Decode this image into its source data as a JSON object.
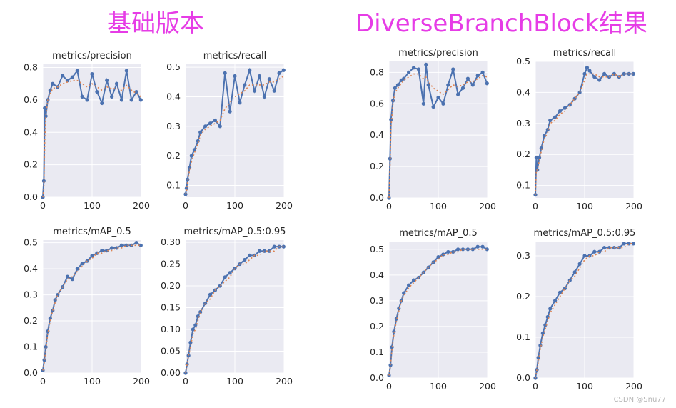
{
  "headings": {
    "left": "基础版本",
    "right": "DiverseBranchBlock结果"
  },
  "watermark": "CSDN @Snu77",
  "colors": {
    "heading": "#e63ce6",
    "panel_bg": "#eaeaf2",
    "grid": "#ffffff",
    "line": "#4c72b0",
    "smooth": "#dd8452"
  },
  "chart_data": [
    {
      "id": "base-precision",
      "group": "基础版本",
      "type": "line",
      "title": "metrics/precision",
      "xlim": [
        0,
        200
      ],
      "ylim": [
        0,
        0.82
      ],
      "xticks": [
        0,
        100,
        200
      ],
      "yticks": [
        0.0,
        0.2,
        0.4,
        0.6,
        0.8
      ],
      "tick_decimals": 1,
      "series": [
        {
          "x": [
            0,
            2,
            4,
            6,
            10,
            15,
            20,
            30,
            40,
            50,
            60,
            70,
            80,
            90,
            100,
            110,
            120,
            130,
            140,
            150,
            160,
            170,
            180,
            190,
            199
          ],
          "y": [
            0.0,
            0.1,
            0.55,
            0.5,
            0.6,
            0.66,
            0.7,
            0.68,
            0.75,
            0.72,
            0.74,
            0.78,
            0.62,
            0.6,
            0.76,
            0.65,
            0.58,
            0.72,
            0.62,
            0.7,
            0.6,
            0.78,
            0.6,
            0.65,
            0.6
          ]
        }
      ],
      "smooth": [
        0.0,
        0.05,
        0.35,
        0.5,
        0.6,
        0.64,
        0.67,
        0.68,
        0.7,
        0.71,
        0.72,
        0.72,
        0.7,
        0.68,
        0.7,
        0.68,
        0.66,
        0.68,
        0.67,
        0.67,
        0.66,
        0.69,
        0.66,
        0.64,
        0.62
      ]
    },
    {
      "id": "base-recall",
      "group": "基础版本",
      "type": "line",
      "title": "metrics/recall",
      "xlim": [
        0,
        200
      ],
      "ylim": [
        0.06,
        0.51
      ],
      "xticks": [
        0,
        100,
        200
      ],
      "yticks": [
        0.1,
        0.2,
        0.3,
        0.4,
        0.5
      ],
      "tick_decimals": 1,
      "series": [
        {
          "x": [
            0,
            2,
            4,
            8,
            12,
            18,
            25,
            30,
            40,
            50,
            60,
            70,
            80,
            90,
            100,
            110,
            120,
            130,
            140,
            150,
            160,
            170,
            180,
            190,
            199
          ],
          "y": [
            0.07,
            0.09,
            0.12,
            0.16,
            0.2,
            0.22,
            0.25,
            0.28,
            0.3,
            0.31,
            0.32,
            0.3,
            0.48,
            0.35,
            0.47,
            0.38,
            0.44,
            0.49,
            0.42,
            0.47,
            0.4,
            0.46,
            0.42,
            0.48,
            0.49
          ]
        }
      ],
      "smooth": [
        0.07,
        0.08,
        0.11,
        0.15,
        0.18,
        0.21,
        0.24,
        0.27,
        0.29,
        0.3,
        0.31,
        0.32,
        0.36,
        0.38,
        0.4,
        0.41,
        0.42,
        0.44,
        0.44,
        0.44,
        0.44,
        0.45,
        0.45,
        0.46,
        0.47
      ]
    },
    {
      "id": "base-map05",
      "group": "基础版本",
      "type": "line",
      "title": "metrics/mAP_0.5",
      "xlim": [
        0,
        200
      ],
      "ylim": [
        0,
        0.51
      ],
      "xticks": [
        0,
        100,
        200
      ],
      "yticks": [
        0.0,
        0.1,
        0.2,
        0.3,
        0.4,
        0.5
      ],
      "tick_decimals": 1,
      "series": [
        {
          "x": [
            0,
            3,
            6,
            10,
            15,
            20,
            25,
            30,
            40,
            50,
            60,
            70,
            80,
            90,
            100,
            110,
            120,
            130,
            140,
            150,
            160,
            170,
            180,
            190,
            199
          ],
          "y": [
            0.01,
            0.05,
            0.1,
            0.16,
            0.21,
            0.24,
            0.28,
            0.3,
            0.33,
            0.37,
            0.36,
            0.4,
            0.42,
            0.43,
            0.45,
            0.46,
            0.47,
            0.47,
            0.48,
            0.48,
            0.49,
            0.49,
            0.49,
            0.5,
            0.49
          ]
        }
      ],
      "smooth": [
        0.01,
        0.04,
        0.09,
        0.15,
        0.2,
        0.24,
        0.27,
        0.3,
        0.33,
        0.36,
        0.37,
        0.39,
        0.41,
        0.43,
        0.44,
        0.46,
        0.46,
        0.47,
        0.47,
        0.48,
        0.48,
        0.49,
        0.49,
        0.49,
        0.49
      ]
    },
    {
      "id": "base-map0595",
      "group": "基础版本",
      "type": "line",
      "title": "metrics/mAP_0.5:0.95",
      "xlim": [
        0,
        200
      ],
      "ylim": [
        0,
        0.305
      ],
      "xticks": [
        0,
        100,
        200
      ],
      "yticks": [
        0.0,
        0.05,
        0.1,
        0.15,
        0.2,
        0.25,
        0.3
      ],
      "tick_decimals": 2,
      "series": [
        {
          "x": [
            0,
            3,
            6,
            10,
            15,
            20,
            25,
            30,
            40,
            50,
            60,
            70,
            80,
            90,
            100,
            110,
            120,
            130,
            140,
            150,
            160,
            170,
            180,
            190,
            199
          ],
          "y": [
            0.0,
            0.02,
            0.04,
            0.07,
            0.1,
            0.11,
            0.13,
            0.14,
            0.16,
            0.18,
            0.19,
            0.2,
            0.22,
            0.23,
            0.24,
            0.25,
            0.26,
            0.27,
            0.27,
            0.28,
            0.28,
            0.28,
            0.29,
            0.29,
            0.29
          ]
        }
      ],
      "smooth": [
        0.0,
        0.02,
        0.04,
        0.06,
        0.09,
        0.1,
        0.12,
        0.14,
        0.16,
        0.17,
        0.19,
        0.2,
        0.21,
        0.22,
        0.24,
        0.25,
        0.25,
        0.26,
        0.27,
        0.27,
        0.28,
        0.28,
        0.28,
        0.29,
        0.29
      ]
    },
    {
      "id": "dbb-precision",
      "group": "DiverseBranchBlock结果",
      "type": "line",
      "title": "metrics/precision",
      "xlim": [
        0,
        200
      ],
      "ylim": [
        0,
        0.87
      ],
      "xticks": [
        0,
        100,
        200
      ],
      "yticks": [
        0.0,
        0.2,
        0.4,
        0.6,
        0.8
      ],
      "tick_decimals": 1,
      "series": [
        {
          "x": [
            0,
            2,
            4,
            8,
            12,
            18,
            25,
            30,
            40,
            50,
            60,
            70,
            75,
            80,
            90,
            100,
            110,
            120,
            130,
            140,
            150,
            160,
            170,
            180,
            190,
            199
          ],
          "y": [
            0.0,
            0.25,
            0.5,
            0.62,
            0.7,
            0.72,
            0.75,
            0.76,
            0.8,
            0.83,
            0.82,
            0.6,
            0.85,
            0.72,
            0.58,
            0.64,
            0.6,
            0.72,
            0.82,
            0.66,
            0.7,
            0.76,
            0.72,
            0.78,
            0.8,
            0.73
          ]
        }
      ],
      "smooth": [
        0.0,
        0.2,
        0.45,
        0.6,
        0.67,
        0.7,
        0.73,
        0.75,
        0.77,
        0.79,
        0.79,
        0.76,
        0.77,
        0.74,
        0.7,
        0.68,
        0.66,
        0.69,
        0.72,
        0.71,
        0.72,
        0.74,
        0.74,
        0.76,
        0.78,
        0.77
      ]
    },
    {
      "id": "dbb-recall",
      "group": "DiverseBranchBlock结果",
      "type": "line",
      "title": "metrics/recall",
      "xlim": [
        0,
        200
      ],
      "ylim": [
        0.06,
        0.5
      ],
      "xticks": [
        0,
        100,
        200
      ],
      "yticks": [
        0.1,
        0.2,
        0.3,
        0.4,
        0.5
      ],
      "tick_decimals": 1,
      "series": [
        {
          "x": [
            0,
            2,
            4,
            8,
            12,
            18,
            25,
            30,
            40,
            50,
            60,
            70,
            80,
            90,
            100,
            105,
            110,
            120,
            130,
            140,
            150,
            160,
            170,
            180,
            190,
            199
          ],
          "y": [
            0.07,
            0.19,
            0.15,
            0.19,
            0.22,
            0.26,
            0.28,
            0.31,
            0.32,
            0.34,
            0.35,
            0.36,
            0.38,
            0.4,
            0.46,
            0.48,
            0.47,
            0.45,
            0.44,
            0.46,
            0.45,
            0.46,
            0.45,
            0.46,
            0.46,
            0.46
          ]
        }
      ],
      "smooth": [
        0.07,
        0.15,
        0.15,
        0.18,
        0.21,
        0.25,
        0.27,
        0.3,
        0.31,
        0.33,
        0.34,
        0.36,
        0.38,
        0.4,
        0.44,
        0.46,
        0.46,
        0.46,
        0.45,
        0.45,
        0.45,
        0.46,
        0.45,
        0.46,
        0.46,
        0.46
      ]
    },
    {
      "id": "dbb-map05",
      "group": "DiverseBranchBlock结果",
      "type": "line",
      "title": "metrics/mAP_0.5",
      "xlim": [
        0,
        200
      ],
      "ylim": [
        0,
        0.53
      ],
      "xticks": [
        0,
        100,
        200
      ],
      "yticks": [
        0.0,
        0.1,
        0.2,
        0.3,
        0.4,
        0.5
      ],
      "tick_decimals": 1,
      "series": [
        {
          "x": [
            0,
            3,
            6,
            10,
            15,
            20,
            25,
            30,
            40,
            50,
            60,
            70,
            80,
            90,
            100,
            110,
            120,
            130,
            140,
            150,
            160,
            170,
            180,
            190,
            199
          ],
          "y": [
            0.01,
            0.05,
            0.12,
            0.18,
            0.23,
            0.27,
            0.3,
            0.33,
            0.36,
            0.38,
            0.39,
            0.41,
            0.43,
            0.45,
            0.47,
            0.48,
            0.49,
            0.49,
            0.5,
            0.5,
            0.5,
            0.5,
            0.51,
            0.51,
            0.5
          ]
        }
      ],
      "smooth": [
        0.01,
        0.05,
        0.11,
        0.17,
        0.22,
        0.26,
        0.3,
        0.32,
        0.35,
        0.37,
        0.39,
        0.41,
        0.43,
        0.45,
        0.46,
        0.48,
        0.48,
        0.49,
        0.49,
        0.5,
        0.5,
        0.5,
        0.5,
        0.5,
        0.5
      ]
    },
    {
      "id": "dbb-map0595",
      "group": "DiverseBranchBlock结果",
      "type": "line",
      "title": "metrics/mAP_0.5:0.95",
      "xlim": [
        0,
        200
      ],
      "ylim": [
        0,
        0.335
      ],
      "xticks": [
        0,
        100,
        200
      ],
      "yticks": [
        0.0,
        0.1,
        0.2,
        0.3
      ],
      "tick_decimals": 1,
      "series": [
        {
          "x": [
            0,
            3,
            6,
            10,
            15,
            20,
            25,
            30,
            40,
            50,
            60,
            70,
            80,
            90,
            100,
            110,
            120,
            130,
            140,
            150,
            160,
            170,
            180,
            190,
            199
          ],
          "y": [
            0.0,
            0.02,
            0.05,
            0.08,
            0.11,
            0.13,
            0.15,
            0.17,
            0.19,
            0.21,
            0.22,
            0.24,
            0.26,
            0.28,
            0.3,
            0.3,
            0.31,
            0.31,
            0.32,
            0.32,
            0.32,
            0.32,
            0.33,
            0.33,
            0.33
          ]
        }
      ],
      "smooth": [
        0.0,
        0.02,
        0.04,
        0.07,
        0.1,
        0.12,
        0.14,
        0.16,
        0.18,
        0.2,
        0.22,
        0.24,
        0.25,
        0.27,
        0.29,
        0.3,
        0.3,
        0.31,
        0.31,
        0.32,
        0.32,
        0.32,
        0.32,
        0.33,
        0.33
      ]
    }
  ]
}
